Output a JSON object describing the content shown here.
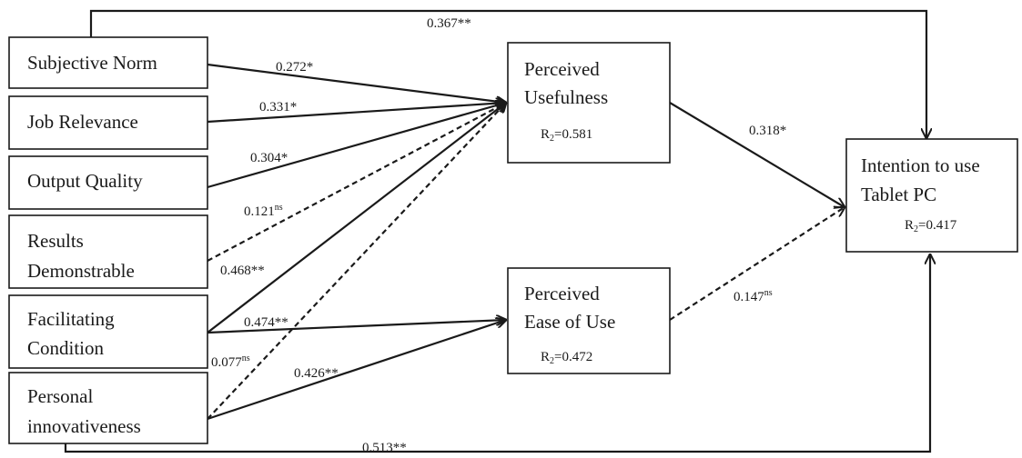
{
  "constructs": {
    "subjective_norm": "Subjective Norm",
    "job_relevance": "Job Relevance",
    "output_quality": "Output Quality",
    "results_demonstrable": [
      "Results",
      "Demonstrable"
    ],
    "facilitating_condition": [
      "Facilitating",
      "Condition"
    ],
    "personal_innovativeness": [
      "Personal",
      "innovativeness"
    ],
    "perceived_usefulness": {
      "lines": [
        "Perceived",
        "Usefulness"
      ],
      "r2_prefix": "R",
      "r2_sub": "2",
      "r2_value": "=0.581"
    },
    "perceived_ease_of_use": {
      "lines": [
        "Perceived",
        "Ease of Use"
      ],
      "r2_prefix": "R",
      "r2_sub": "2",
      "r2_value": "=0.472"
    },
    "intention_to_use": {
      "lines": [
        "Intention to use",
        "Tablet PC"
      ],
      "r2_prefix": "R",
      "r2_sub": "2",
      "r2_value": "=0.417"
    }
  },
  "paths": {
    "sn_to_pu": "0.272*",
    "jr_to_pu": "0.331*",
    "oq_to_pu": "0.304*",
    "rd_to_pu": {
      "value": "0.121",
      "sig": "ns"
    },
    "fc_to_pu": "0.468**",
    "fc_to_peou": "0.474**",
    "pi_to_pu": {
      "value": "0.077",
      "sig": "ns"
    },
    "pi_to_peou": "0.426**",
    "pu_to_itu": "0.318*",
    "peou_to_itu": {
      "value": "0.147",
      "sig": "ns"
    },
    "sn_to_itu": "0.367**",
    "pi_to_itu": "0.513**"
  }
}
